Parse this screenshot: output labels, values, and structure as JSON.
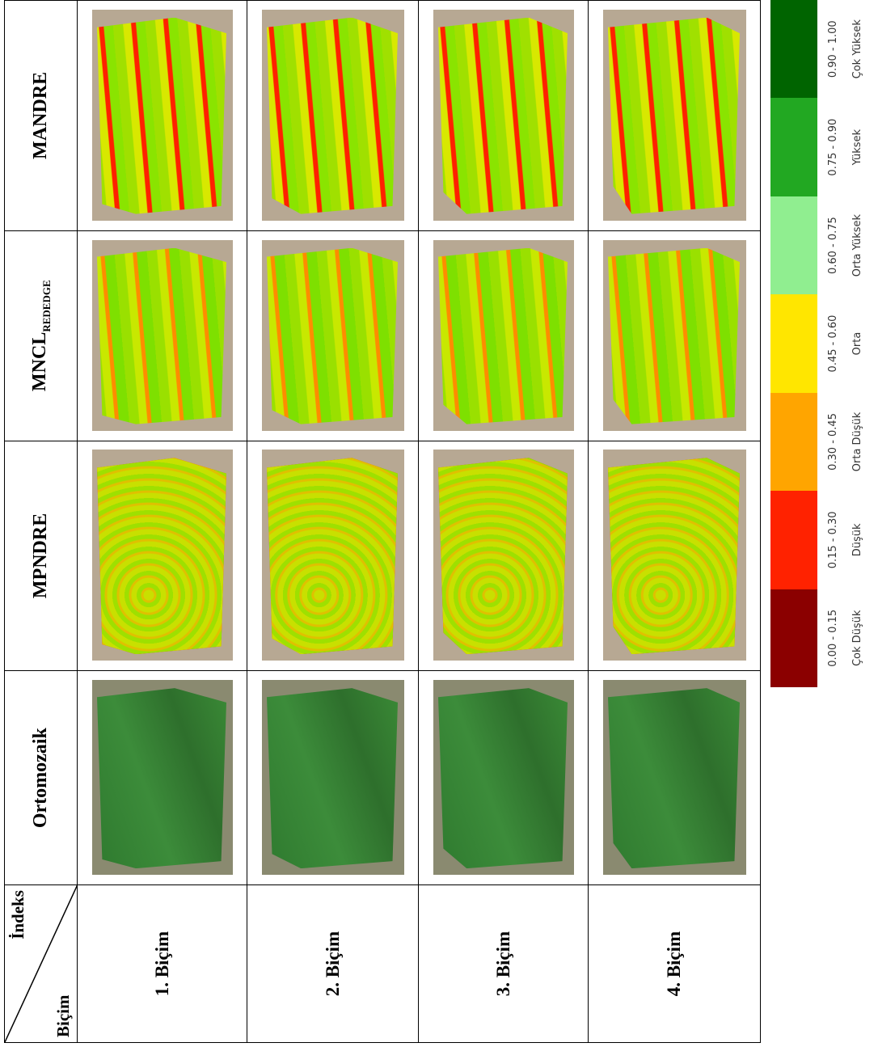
{
  "table": {
    "corner": {
      "top": "İndeks",
      "bottom": "Biçim"
    },
    "columns": [
      {
        "main": "Ortomozaik"
      },
      {
        "main": "MPNDRE"
      },
      {
        "main": "MNCL",
        "sub": "REDEDGE"
      },
      {
        "main": "MANDRE"
      }
    ],
    "rows": [
      "1. Biçim",
      "2. Biçim",
      "3. Biçim",
      "4. Biçim"
    ]
  },
  "legend": {
    "classes": [
      {
        "range": "0.00 - 0.15",
        "label": "Çok Düşük",
        "color": "#8b0000"
      },
      {
        "range": "0.15 - 0.30",
        "label": "Düşük",
        "color": "#ff2200"
      },
      {
        "range": "0.30 - 0.45",
        "label": "Orta Düşük",
        "color": "#ffa500"
      },
      {
        "range": "0.45 - 0.60",
        "label": "Orta",
        "color": "#ffe600"
      },
      {
        "range": "0.60 - 0.75",
        "label": "Orta Yüksek",
        "color": "#90ee90"
      },
      {
        "range": "0.75 - 0.90",
        "label": "Yüksek",
        "color": "#22a822"
      },
      {
        "range": "0.90 - 1.00",
        "label": "Çok Yüksek",
        "color": "#006400"
      }
    ]
  }
}
